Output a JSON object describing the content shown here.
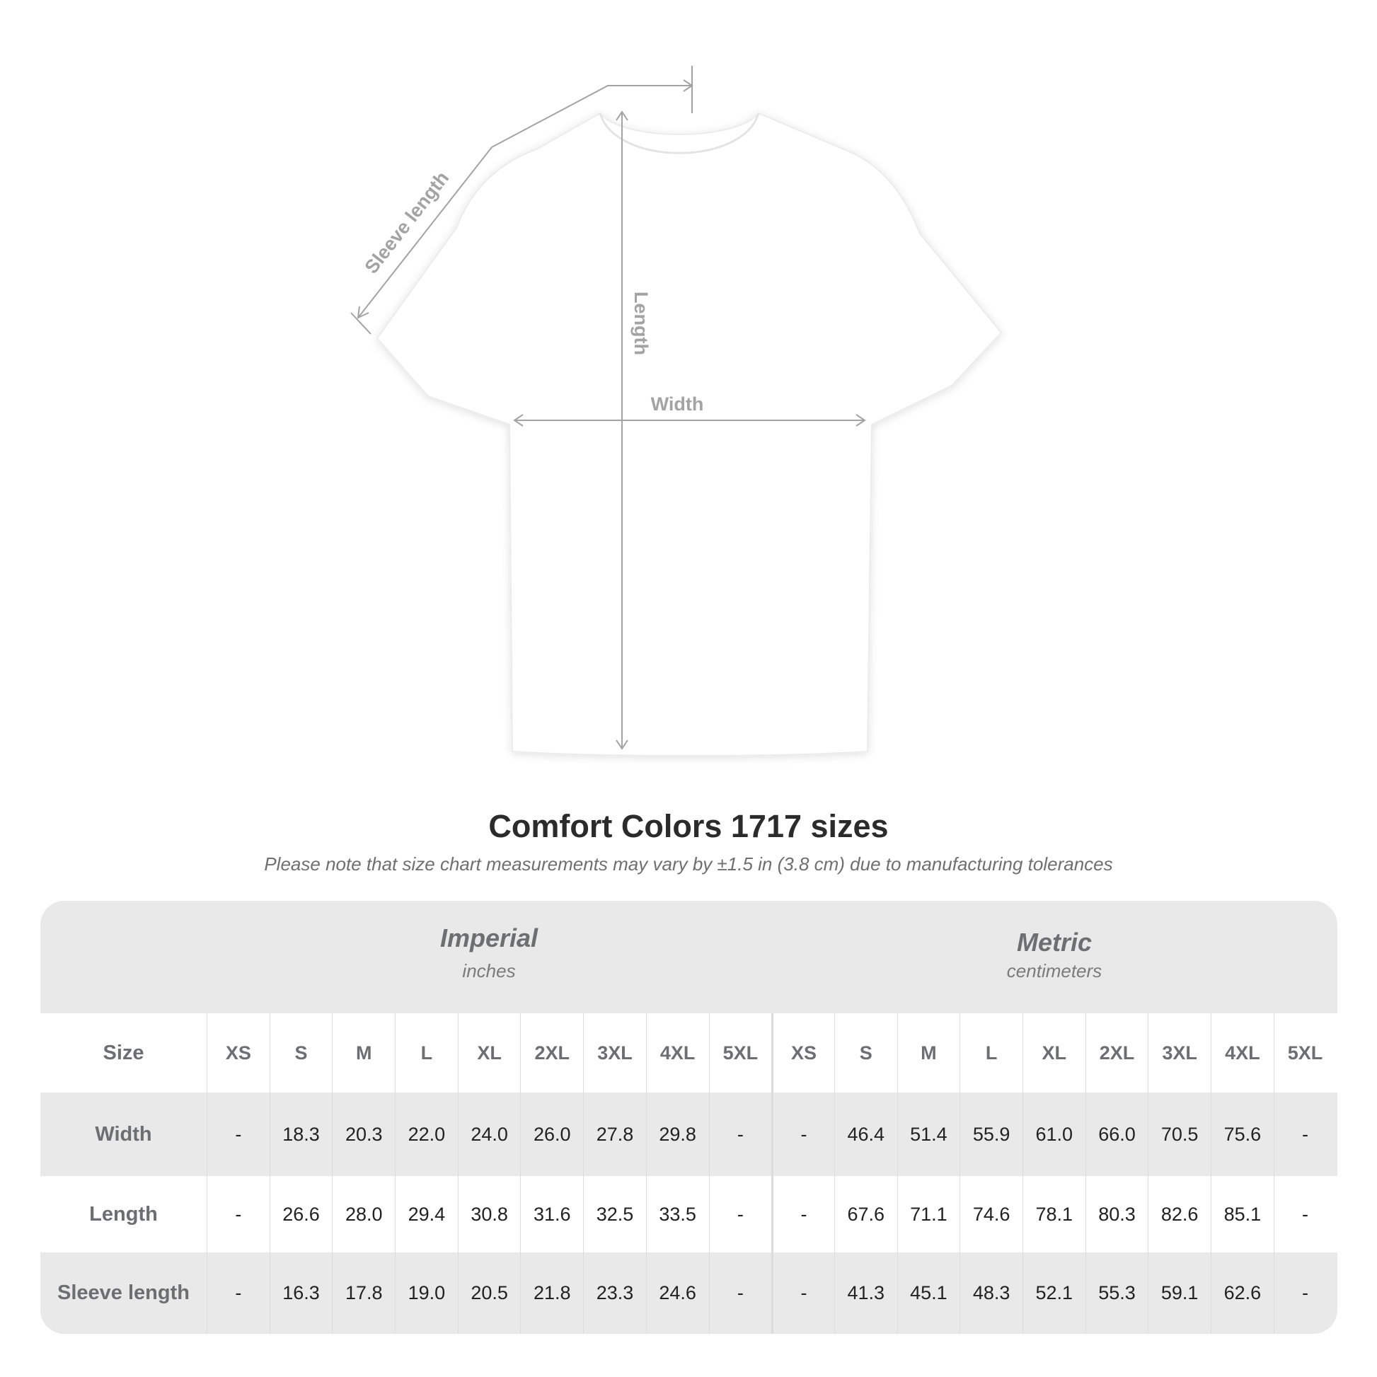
{
  "diagram": {
    "labels": {
      "sleeve": "Sleeve length",
      "length": "Length",
      "width": "Width"
    },
    "line_color": "#a3a3a3",
    "shirt_color": "#ffffff"
  },
  "title": "Comfort Colors 1717 sizes",
  "subtitle": "Please note that size chart measurements may vary by ±1.5 in (3.8 cm) due to manufacturing tolerances",
  "table": {
    "imperial": {
      "name": "Imperial",
      "unit": "inches"
    },
    "metric": {
      "name": "Metric",
      "unit": "centimeters"
    },
    "size_label": "Size",
    "sizes": [
      "XS",
      "S",
      "M",
      "L",
      "XL",
      "2XL",
      "3XL",
      "4XL",
      "5XL"
    ],
    "rows": [
      {
        "label": "Width",
        "imperial": [
          "-",
          "18.3",
          "20.3",
          "22.0",
          "24.0",
          "26.0",
          "27.8",
          "29.8",
          "-"
        ],
        "metric": [
          "-",
          "46.4",
          "51.4",
          "55.9",
          "61.0",
          "66.0",
          "70.5",
          "75.6",
          "-"
        ]
      },
      {
        "label": "Length",
        "imperial": [
          "-",
          "26.6",
          "28.0",
          "29.4",
          "30.8",
          "31.6",
          "32.5",
          "33.5",
          "-"
        ],
        "metric": [
          "-",
          "67.6",
          "71.1",
          "74.6",
          "78.1",
          "80.3",
          "82.6",
          "85.1",
          "-"
        ]
      },
      {
        "label": "Sleeve length",
        "imperial": [
          "-",
          "16.3",
          "17.8",
          "19.0",
          "20.5",
          "21.8",
          "23.3",
          "24.6",
          "-"
        ],
        "metric": [
          "-",
          "41.3",
          "45.1",
          "48.3",
          "52.1",
          "55.3",
          "59.1",
          "62.6",
          "-"
        ]
      }
    ],
    "colors": {
      "band": "#e9e9e9",
      "header_text": "#6b6f70"
    }
  }
}
